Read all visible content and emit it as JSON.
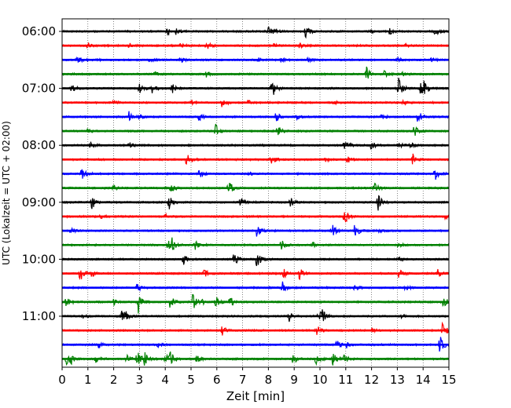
{
  "chart_data": {
    "type": "line",
    "xlabel": "Zeit  [min]",
    "ylabel": "UTC (Lokalzeit = UTC + 02:00)",
    "xlim": [
      0,
      15
    ],
    "x_ticks": [
      0,
      1,
      2,
      3,
      4,
      5,
      6,
      7,
      8,
      9,
      10,
      11,
      12,
      13,
      14,
      15
    ],
    "x_grid": true,
    "y_tick_labels": [
      "06:00",
      "07:00",
      "08:00",
      "09:00",
      "10:00",
      "11:00"
    ],
    "y_tick_rows": [
      0,
      4,
      8,
      12,
      16,
      20
    ],
    "row_interval_min": 15,
    "row_colors": [
      "#000000",
      "#ff0000",
      "#0000ff",
      "#008000"
    ],
    "rows": [
      {
        "events": [
          [
            4.05,
            0.6
          ],
          [
            4.4,
            0.4
          ],
          [
            8.0,
            0.55
          ],
          [
            8.2,
            0.3
          ],
          [
            9.45,
            0.9
          ],
          [
            12.0,
            0.25
          ],
          [
            12.7,
            0.35
          ],
          [
            14.45,
            0.7
          ]
        ]
      },
      {
        "events": [
          [
            1.0,
            0.3
          ],
          [
            2.6,
            0.3
          ],
          [
            4.6,
            0.3
          ],
          [
            5.6,
            0.6
          ],
          [
            8.2,
            0.3
          ],
          [
            9.2,
            0.3
          ],
          [
            13.3,
            0.3
          ]
        ]
      },
      {
        "events": [
          [
            0.6,
            0.55
          ],
          [
            1.1,
            0.3
          ],
          [
            3.4,
            0.25
          ],
          [
            4.6,
            0.3
          ],
          [
            7.6,
            0.3
          ],
          [
            8.5,
            0.3
          ],
          [
            9.5,
            0.4
          ],
          [
            13.0,
            0.3
          ],
          [
            14.3,
            0.3
          ]
        ]
      },
      {
        "events": [
          [
            3.6,
            0.25
          ],
          [
            5.6,
            0.45
          ],
          [
            11.8,
            0.9
          ],
          [
            12.5,
            0.4
          ],
          [
            13.2,
            0.25
          ]
        ]
      },
      {
        "events": [
          [
            0.35,
            0.5
          ],
          [
            3.0,
            0.8
          ],
          [
            3.5,
            0.6
          ],
          [
            4.25,
            0.8
          ],
          [
            8.1,
            0.6
          ],
          [
            8.2,
            0.5
          ],
          [
            13.05,
            1.3
          ],
          [
            13.9,
            1.0
          ],
          [
            14.05,
            0.8
          ]
        ]
      },
      {
        "events": [
          [
            2.0,
            0.25
          ],
          [
            5.0,
            0.25
          ],
          [
            6.2,
            0.7
          ],
          [
            7.2,
            0.3
          ],
          [
            10.5,
            0.25
          ],
          [
            13.2,
            0.3
          ]
        ]
      },
      {
        "events": [
          [
            2.6,
            0.8
          ],
          [
            3.0,
            0.3
          ],
          [
            5.3,
            0.6
          ],
          [
            8.3,
            0.7
          ],
          [
            9.1,
            0.3
          ],
          [
            12.4,
            0.3
          ],
          [
            13.8,
            0.9
          ]
        ]
      },
      {
        "events": [
          [
            1.0,
            0.3
          ],
          [
            5.95,
            0.9
          ],
          [
            8.35,
            0.8
          ],
          [
            13.65,
            0.7
          ]
        ]
      },
      {
        "events": [
          [
            1.1,
            0.4
          ],
          [
            2.6,
            0.4
          ],
          [
            10.95,
            0.8
          ],
          [
            12.0,
            0.6
          ],
          [
            13.05,
            0.4
          ],
          [
            13.5,
            0.4
          ]
        ]
      },
      {
        "events": [
          [
            4.8,
            1.0
          ],
          [
            8.1,
            0.7
          ],
          [
            10.2,
            0.4
          ],
          [
            11.05,
            0.5
          ],
          [
            13.6,
            0.7
          ]
        ]
      },
      {
        "events": [
          [
            0.75,
            0.8
          ],
          [
            5.3,
            0.6
          ],
          [
            7.2,
            0.3
          ],
          [
            14.45,
            0.9
          ]
        ]
      },
      {
        "events": [
          [
            2.0,
            0.3
          ],
          [
            4.2,
            0.6
          ],
          [
            6.45,
            1.1
          ],
          [
            12.1,
            0.7
          ]
        ]
      },
      {
        "events": [
          [
            1.15,
            1.0
          ],
          [
            4.15,
            0.9
          ],
          [
            6.9,
            0.7
          ],
          [
            8.85,
            0.7
          ],
          [
            12.25,
            1.1
          ]
        ]
      },
      {
        "events": [
          [
            1.5,
            0.3
          ],
          [
            4.0,
            0.3
          ],
          [
            10.95,
            1.0
          ],
          [
            14.8,
            0.5
          ]
        ]
      },
      {
        "events": [
          [
            0.35,
            0.5
          ],
          [
            7.55,
            0.8
          ],
          [
            10.45,
            1.0
          ],
          [
            11.35,
            0.9
          ],
          [
            12.2,
            0.3
          ]
        ]
      },
      {
        "events": [
          [
            4.1,
            1.0
          ],
          [
            4.25,
            0.8
          ],
          [
            5.15,
            0.6
          ],
          [
            8.5,
            0.7
          ],
          [
            9.7,
            0.3
          ],
          [
            13.05,
            0.3
          ]
        ]
      },
      {
        "events": [
          [
            4.7,
            1.0
          ],
          [
            6.65,
            1.0
          ],
          [
            7.55,
            1.2
          ],
          [
            13.0,
            0.3
          ]
        ]
      },
      {
        "events": [
          [
            0.7,
            1.0
          ],
          [
            1.15,
            0.5
          ],
          [
            5.5,
            0.6
          ],
          [
            8.6,
            0.6
          ],
          [
            9.2,
            0.8
          ],
          [
            13.05,
            0.8
          ],
          [
            14.55,
            0.6
          ]
        ]
      },
      {
        "events": [
          [
            2.9,
            0.5
          ],
          [
            8.55,
            0.8
          ],
          [
            11.35,
            0.4
          ],
          [
            13.3,
            0.3
          ]
        ]
      },
      {
        "events": [
          [
            0.15,
            0.7
          ],
          [
            2.0,
            0.4
          ],
          [
            2.95,
            1.5
          ],
          [
            4.2,
            1.0
          ],
          [
            5.05,
            1.2
          ],
          [
            5.35,
            0.5
          ],
          [
            5.95,
            0.9
          ],
          [
            6.5,
            0.8
          ],
          [
            14.8,
            1.0
          ]
        ]
      },
      {
        "events": [
          [
            0.8,
            0.3
          ],
          [
            2.3,
            0.7
          ],
          [
            2.45,
            0.5
          ],
          [
            8.8,
            0.7
          ],
          [
            9.95,
            1.0
          ],
          [
            10.1,
            0.6
          ],
          [
            13.15,
            0.3
          ]
        ]
      },
      {
        "events": [
          [
            6.2,
            0.7
          ],
          [
            9.9,
            0.8
          ],
          [
            12.0,
            0.3
          ],
          [
            14.75,
            1.0
          ]
        ]
      },
      {
        "events": [
          [
            1.4,
            0.8
          ],
          [
            3.7,
            0.3
          ],
          [
            10.65,
            0.6
          ],
          [
            11.0,
            0.4
          ],
          [
            14.65,
            1.3
          ]
        ]
      },
      {
        "events": [
          [
            0.15,
            0.8
          ],
          [
            0.35,
            0.5
          ],
          [
            1.3,
            0.6
          ],
          [
            2.5,
            0.6
          ],
          [
            2.9,
            1.3
          ],
          [
            3.2,
            0.8
          ],
          [
            4.0,
            0.9
          ],
          [
            4.2,
            1.0
          ],
          [
            5.2,
            0.6
          ],
          [
            8.95,
            0.7
          ],
          [
            9.85,
            0.8
          ],
          [
            10.5,
            0.9
          ],
          [
            10.95,
            0.6
          ]
        ]
      }
    ]
  }
}
